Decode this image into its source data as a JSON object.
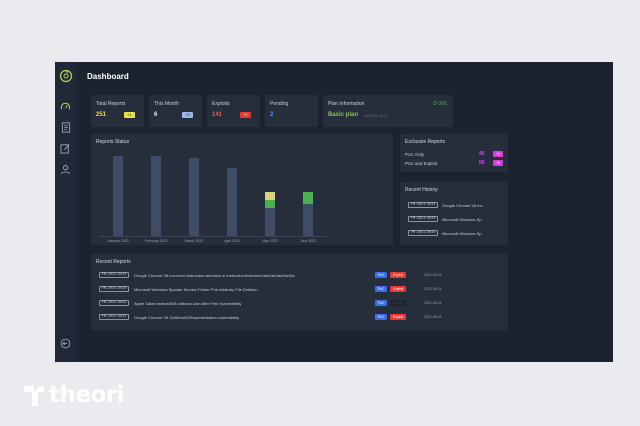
{
  "page_title": "Dashboard",
  "stats": [
    {
      "label": "Total Reports",
      "value": "251",
      "badge": "+1",
      "value_color": "#e6e04a",
      "badge_bg": "#e6e04a",
      "badge_fg": "#1c2230"
    },
    {
      "label": "This Month",
      "value": "6",
      "badge": "+0",
      "value_color": "#e6e9ef",
      "badge_bg": "#9fb7e8",
      "badge_fg": "#1c2230"
    },
    {
      "label": "Exploits",
      "value": "141",
      "badge": "+1",
      "value_color": "#ff5252",
      "badge_bg": "#e53935",
      "badge_fg": "#ffffff"
    },
    {
      "label": "Pending",
      "value": "2",
      "badge": "",
      "value_color": "#5b8cff",
      "badge_bg": "",
      "badge_fg": ""
    }
  ],
  "plan": {
    "label": "Plan Information",
    "days": "D-366",
    "name": "Basic plan",
    "until": "until 2026.06.21"
  },
  "reports_status": {
    "title": "Reports Status",
    "chart_data": {
      "type": "bar",
      "stacked": true,
      "categories": [
        "January 2023",
        "February 2023",
        "March 2023",
        "April 2023",
        "May 2023",
        "June 2023"
      ],
      "series": [
        {
          "values": [
            100,
            100,
            98,
            85,
            35,
            40
          ]
        },
        {
          "values": [
            0,
            0,
            0,
            0,
            10,
            15
          ]
        },
        {
          "values": [
            0,
            0,
            0,
            0,
            10,
            0
          ]
        }
      ],
      "colors": [
        "#3f4c66",
        "#4caf50",
        "#d8d47d"
      ],
      "ylim": [
        0,
        105
      ]
    }
  },
  "exclusive": {
    "title": "Exclusive Reports",
    "rows": [
      {
        "label": "PoC Only",
        "value": "40",
        "badge": "+1"
      },
      {
        "label": "PoC and Exploit",
        "value": "50",
        "badge": "+0"
      }
    ]
  },
  "history": {
    "title": "Recent History",
    "rows": [
      {
        "id": "FM-2021-0024",
        "text": "Google Chrome V8 inc"
      },
      {
        "id": "FM-2021-0020",
        "text": "Microsoft Windows Sp"
      },
      {
        "id": "FM-2021-0020",
        "text": "Microsoft Windows Sp"
      }
    ]
  },
  "recent": {
    "title": "Recent Reports",
    "rows": [
      {
        "id": "FM-2021-0024",
        "text": "Google Chrome V8 incorrect instruction selection in InstructionSelectionXadXadXadXadXa",
        "poc": "PoC",
        "exploit": "Exploit",
        "date": "2021.06.01",
        "exploit_active": true
      },
      {
        "id": "FM-2021-0020",
        "text": "Microsoft Windows Spooler Service Printer Port Arbitrary File Deletion",
        "poc": "PoC",
        "exploit": "Exploit",
        "date": "2021.06.01",
        "exploit_active": true
      },
      {
        "id": "FM-2021-0022",
        "text": "Apple Safari IndexedDB rollback Use After Free Vulnerability",
        "poc": "PoC",
        "exploit": "Exploit",
        "date": "2021.06.01",
        "exploit_active": false
      },
      {
        "id": "FM-2021-0021",
        "text": "Google Chrome V8 GetWord32Representation vulnerability",
        "poc": "PoC",
        "exploit": "Exploit",
        "date": "2021.06.01",
        "exploit_active": true
      }
    ]
  },
  "brand": {
    "name": "theori"
  },
  "icons": {
    "logo": "compass-logo-icon",
    "dashboard": "speedometer-icon",
    "reports": "document-icon",
    "edit": "edit-icon",
    "user": "user-icon",
    "logout": "logout-icon"
  }
}
